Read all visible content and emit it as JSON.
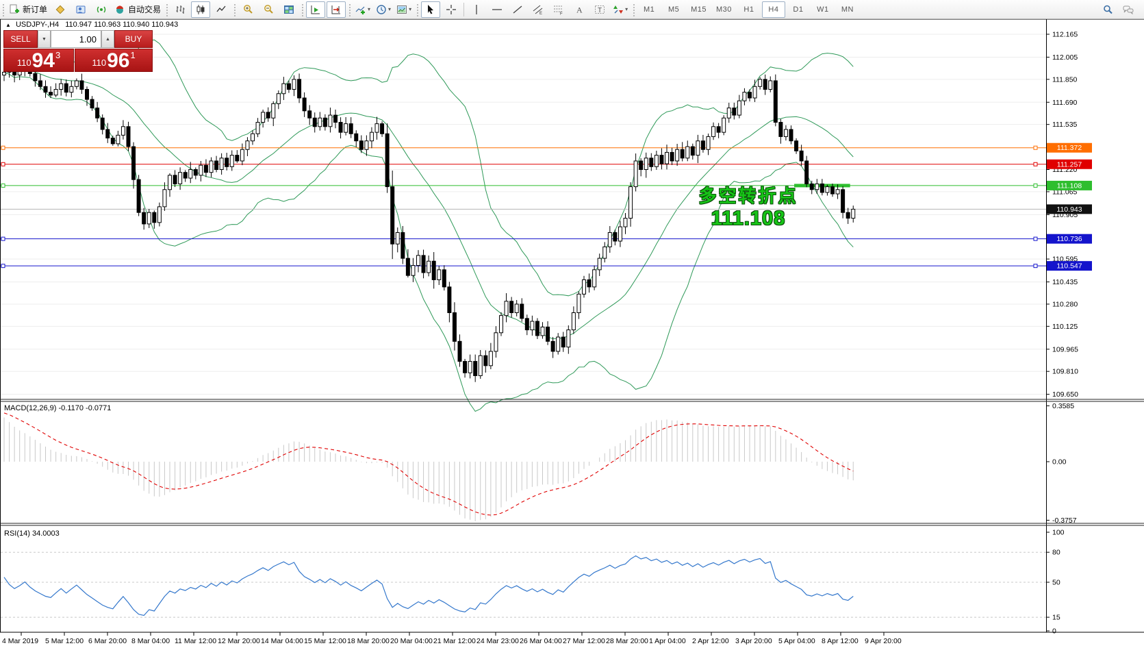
{
  "toolbar": {
    "new_order": "新订单",
    "auto_trading": "自动交易",
    "timeframes": [
      "M1",
      "M5",
      "M15",
      "M30",
      "H1",
      "H4",
      "D1",
      "W1",
      "MN"
    ],
    "selected_timeframe": "H4"
  },
  "title": {
    "arrow": "▲",
    "symbol": "USDJPY-,H4",
    "open": "110.947",
    "high": "110.963",
    "low": "110.940",
    "close": "110.943"
  },
  "trade": {
    "sell": "SELL",
    "buy": "BUY",
    "lot": "1.00",
    "spin_down": "▼",
    "spin_up": "▲",
    "sell_price": {
      "prefix": "110",
      "big": "94",
      "sup": "3"
    },
    "buy_price": {
      "prefix": "110",
      "big": "96",
      "sup": "1"
    }
  },
  "indicators": {
    "macd_label": "MACD(12,26,9)",
    "macd_values": "-0.1170 -0.0771",
    "rsi_label": "RSI(14)",
    "rsi_value": "34.0003"
  },
  "annotation": {
    "line1": "多空转折点",
    "line2": "111.108"
  },
  "colors": {
    "level_orange": "#ff6e00",
    "level_red": "#e00000",
    "level_green": "#2ebe2e",
    "level_blue": "#1414cc",
    "current_black": "#111111",
    "band_green": "#2e9958",
    "macd_hist": "#c8c8c8",
    "macd_signal": "#e00000",
    "rsi_blue": "#3377cc",
    "annotation_green": "#17c417",
    "panel_red": "#b81d1d"
  },
  "chart_data": {
    "type": "candlestick",
    "symbol": "USDJPY-",
    "timeframe": "H4",
    "title": "USDJPY-,H4 110.947 110.963 110.940 110.943",
    "ylim": [
      109.65,
      112.25
    ],
    "grid": true,
    "current_price": 110.943,
    "levels": [
      {
        "price": 111.372,
        "color_key": "level_orange"
      },
      {
        "price": 111.257,
        "color_key": "level_red"
      },
      {
        "price": 111.108,
        "color_key": "level_green"
      },
      {
        "price": 110.736,
        "color_key": "level_blue"
      },
      {
        "price": 110.547,
        "color_key": "level_blue"
      }
    ],
    "highlight_segment": {
      "price": 111.108,
      "bar_start": 153,
      "bar_end": 163
    },
    "y_ticks": [
      "112.165",
      "112.005",
      "111.850",
      "111.690",
      "111.535",
      "111.220",
      "111.065",
      "110.905",
      "110.595",
      "110.435",
      "110.280",
      "110.125",
      "109.965",
      "109.810",
      "109.650"
    ],
    "x_labels": [
      "4 Mar 2019",
      "5 Mar 12:00",
      "6 Mar 20:00",
      "8 Mar 04:00",
      "11 Mar 12:00",
      "12 Mar 20:00",
      "14 Mar 04:00",
      "15 Mar 12:00",
      "18 Mar 20:00",
      "20 Mar 04:00",
      "21 Mar 12:00",
      "24 Mar 23:00",
      "26 Mar 04:00",
      "27 Mar 12:00",
      "28 Mar 20:00",
      "1 Apr 04:00",
      "2 Apr 12:00",
      "3 Apr 20:00",
      "5 Apr 04:00",
      "8 Apr 12:00",
      "9 Apr 20:00"
    ],
    "first_open": 111.88,
    "closes": [
      111.9,
      111.93,
      111.88,
      111.91,
      111.95,
      111.89,
      111.84,
      111.8,
      111.76,
      111.74,
      111.78,
      111.82,
      111.76,
      111.8,
      111.84,
      111.78,
      111.71,
      111.65,
      111.58,
      111.5,
      111.44,
      111.4,
      111.46,
      111.52,
      111.38,
      111.15,
      110.92,
      110.84,
      110.92,
      110.85,
      110.96,
      111.08,
      111.18,
      111.12,
      111.2,
      111.16,
      111.22,
      111.18,
      111.25,
      111.2,
      111.28,
      111.22,
      111.3,
      111.24,
      111.32,
      111.28,
      111.36,
      111.42,
      111.47,
      111.55,
      111.62,
      111.58,
      111.68,
      111.75,
      111.82,
      111.78,
      111.85,
      111.72,
      111.63,
      111.58,
      111.52,
      111.58,
      111.52,
      111.6,
      111.55,
      111.48,
      111.54,
      111.47,
      111.42,
      111.36,
      111.42,
      111.48,
      111.54,
      111.47,
      111.1,
      110.7,
      110.78,
      110.6,
      110.48,
      110.55,
      110.62,
      110.5,
      110.58,
      110.45,
      110.52,
      110.4,
      110.22,
      110.02,
      109.88,
      109.8,
      109.88,
      109.78,
      109.92,
      109.85,
      109.95,
      110.08,
      110.2,
      110.3,
      110.22,
      110.28,
      110.18,
      110.1,
      110.16,
      110.06,
      110.12,
      110.02,
      109.95,
      110.05,
      109.98,
      110.1,
      110.22,
      110.35,
      110.45,
      110.4,
      110.52,
      110.6,
      110.68,
      110.78,
      110.72,
      110.82,
      110.88,
      111.1,
      111.28,
      111.22,
      111.3,
      111.24,
      111.32,
      111.26,
      111.34,
      111.28,
      111.36,
      111.3,
      111.38,
      111.32,
      111.42,
      111.36,
      111.45,
      111.52,
      111.48,
      111.58,
      111.65,
      111.6,
      111.7,
      111.76,
      111.72,
      111.8,
      111.85,
      111.78,
      111.84,
      111.55,
      111.45,
      111.5,
      111.42,
      111.35,
      111.28,
      111.12,
      111.08,
      111.12,
      111.06,
      111.1,
      111.05,
      111.08,
      110.92,
      110.88,
      110.943
    ],
    "indicators": {
      "bollinger": {
        "period": 20,
        "deviation": 2
      },
      "macd": {
        "fast": 12,
        "slow": 26,
        "signal": 9,
        "value": -0.117,
        "signal_value": -0.0771,
        "axis": [
          "0.3585",
          "0.00",
          "-0.3757"
        ]
      },
      "rsi": {
        "period": 14,
        "value": 34.0003,
        "levels": [
          80,
          50,
          15
        ],
        "axis": [
          "100",
          "80",
          "50",
          "15",
          "0"
        ]
      }
    }
  }
}
